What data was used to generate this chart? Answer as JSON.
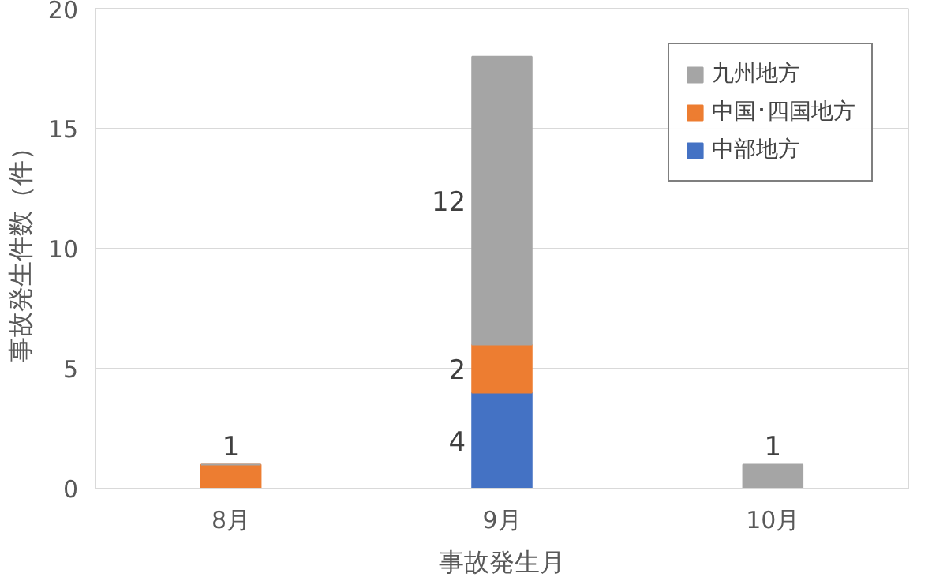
{
  "chart_data": {
    "type": "bar",
    "stacked": true,
    "xlabel": "事故発生月",
    "ylabel": "事故発生件数（件）",
    "categories": [
      "8月",
      "9月",
      "10月"
    ],
    "series": [
      {
        "name": "中部地方",
        "color": "#4472c4",
        "values": [
          0,
          4,
          0
        ],
        "value_labels": [
          null,
          "4",
          null
        ]
      },
      {
        "name": "中国･四国地方",
        "color": "#ed7d31",
        "values": [
          1,
          2,
          0
        ],
        "value_labels": [
          "1",
          "2",
          null
        ]
      },
      {
        "name": "九州地方",
        "color": "#a5a5a5",
        "values": [
          0,
          12,
          1
        ],
        "value_labels": [
          null,
          "12",
          "1"
        ]
      }
    ],
    "ylim": [
      0,
      20
    ],
    "yticks": [
      0,
      5,
      10,
      15,
      20
    ],
    "grid": "y",
    "legend": "top right"
  }
}
